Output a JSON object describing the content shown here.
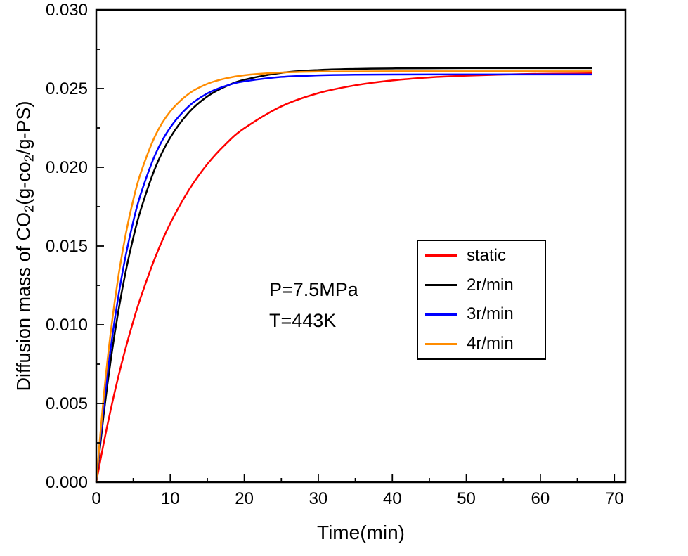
{
  "chart_data": {
    "type": "line",
    "title": "",
    "xlabel": "Time(min)",
    "ylabel_text": "Diffusion mass of CO2(g-co2/g-PS)",
    "ylabel_parts": [
      {
        "text": "Diffusion mass of CO"
      },
      {
        "text": "2",
        "sub": true
      },
      {
        "text": "(g-co"
      },
      {
        "text": "2",
        "sub": true
      },
      {
        "text": "/g-PS)"
      }
    ],
    "xlim": [
      0,
      71.5
    ],
    "ylim": [
      0,
      0.03
    ],
    "grid": false,
    "x_major_ticks": [
      0,
      10,
      20,
      30,
      40,
      50,
      60,
      70
    ],
    "x_tick_labels": [
      "0",
      "10",
      "20",
      "30",
      "40",
      "50",
      "60",
      "70"
    ],
    "x_minor_step": 5,
    "y_major_ticks": [
      0,
      0.005,
      0.01,
      0.015,
      0.02,
      0.025,
      0.03
    ],
    "y_tick_labels": [
      "0.000",
      "0.005",
      "0.010",
      "0.015",
      "0.020",
      "0.025",
      "0.030"
    ],
    "y_minor_step": 0.0025,
    "annotation": {
      "lines": [
        "P=7.5MPa",
        "T=443K"
      ]
    },
    "legend": {
      "position": "center-right",
      "entries": [
        {
          "label": "static",
          "color": "#ff0000"
        },
        {
          "label": "2r/min",
          "color": "#000000"
        },
        {
          "label": "3r/min",
          "color": "#0000ff"
        },
        {
          "label": "4r/min",
          "color": "#ff8c00"
        }
      ]
    },
    "x": [
      0,
      1,
      2,
      3,
      4,
      5,
      6,
      8,
      10,
      12.5,
      15,
      17.5,
      20,
      25,
      30,
      35,
      40,
      45,
      50,
      55,
      60,
      65,
      67
    ],
    "series": [
      {
        "name": "static",
        "color": "#ff0000",
        "values": [
          0,
          0.00247,
          0.00471,
          0.00674,
          0.00857,
          0.01023,
          0.01173,
          0.01432,
          0.01644,
          0.01855,
          0.0202,
          0.02148,
          0.02248,
          0.02387,
          0.02471,
          0.02521,
          0.02552,
          0.02571,
          0.02582,
          0.02589,
          0.02594,
          0.02596,
          0.02597
        ]
      },
      {
        "name": "2r/min",
        "color": "#000000",
        "values": [
          0,
          0.0043,
          0.0079,
          0.01091,
          0.01343,
          0.01553,
          0.01729,
          0.02,
          0.02189,
          0.02348,
          0.0245,
          0.02514,
          0.02556,
          0.026,
          0.02618,
          0.02625,
          0.02628,
          0.02629,
          0.0263,
          0.0263,
          0.0263,
          0.0263,
          0.0263
        ]
      },
      {
        "name": "3r/min",
        "color": "#0000ff",
        "values": [
          0,
          0.00478,
          0.00868,
          0.01186,
          0.01445,
          0.01656,
          0.01829,
          0.02084,
          0.02253,
          0.02388,
          0.02469,
          0.02517,
          0.02546,
          0.02574,
          0.02584,
          0.02588,
          0.02589,
          0.0259,
          0.0259,
          0.0259,
          0.0259,
          0.0259,
          0.0259
        ]
      },
      {
        "name": "4r/min",
        "color": "#ff8c00",
        "values": [
          0,
          0.00542,
          0.00971,
          0.01311,
          0.0158,
          0.01794,
          0.01963,
          0.02204,
          0.02355,
          0.02467,
          0.0253,
          0.02565,
          0.02585,
          0.02602,
          0.02608,
          0.02609,
          0.0261,
          0.0261,
          0.0261,
          0.0261,
          0.0261,
          0.0261,
          0.0261
        ]
      }
    ],
    "frame_color": "#000000",
    "background": "#ffffff"
  }
}
